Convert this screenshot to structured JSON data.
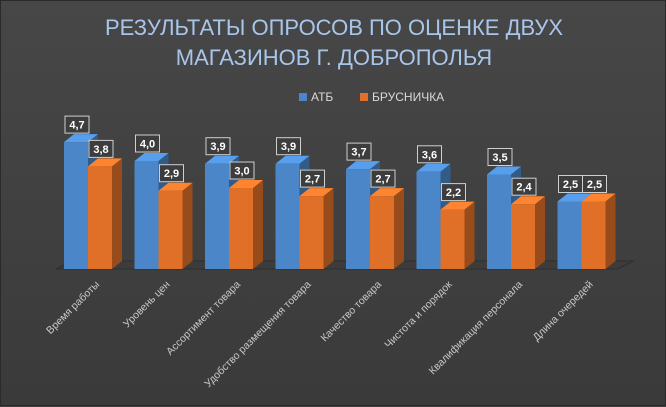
{
  "chart_data": {
    "type": "bar",
    "title": [
      "РЕЗУЛЬТАТЫ ОПРОСОВ ПО ОЦЕНКЕ ДВУХ",
      "МАГАЗИНОВ Г. ДОБРОПОЛЬЯ"
    ],
    "categories": [
      "Время работы",
      "Уровень цен",
      "Ассортимент товара",
      "Удобство размещения товара",
      "Качество товара",
      "Чистота и порядок",
      "Квалификация персонала",
      "Длина очередей"
    ],
    "series": [
      {
        "name": "АТБ",
        "color": "#4a86c8",
        "values": [
          4.7,
          4.0,
          3.9,
          3.9,
          3.7,
          3.6,
          3.5,
          2.5
        ],
        "labels": [
          "4,7",
          "4,0",
          "3,9",
          "3,9",
          "3,7",
          "3,6",
          "3,5",
          "2,5"
        ]
      },
      {
        "name": "БРУСНИЧКА",
        "color": "#e07028",
        "values": [
          3.8,
          2.9,
          3.0,
          2.7,
          2.7,
          2.2,
          2.4,
          2.5
        ],
        "labels": [
          "3,8",
          "2,9",
          "3,0",
          "2,7",
          "2,7",
          "2,2",
          "2,4",
          "2,5"
        ]
      }
    ],
    "ylim": [
      0,
      5
    ],
    "legend": "top-center",
    "grid": false
  }
}
